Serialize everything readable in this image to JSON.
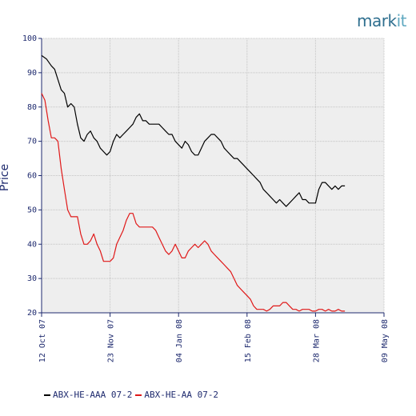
{
  "brand": {
    "logo_main": "mark",
    "logo_accent": "it"
  },
  "chart_data": {
    "type": "line",
    "ylabel": "Price",
    "xlabel": "",
    "ylim": [
      20,
      100
    ],
    "yticks": [
      20,
      30,
      40,
      50,
      60,
      70,
      80,
      90,
      100
    ],
    "xticks": [
      {
        "label": "12 Oct 07",
        "t": 0
      },
      {
        "label": "23 Nov 07",
        "t": 42
      },
      {
        "label": "04 Jan 08",
        "t": 84
      },
      {
        "label": "15 Feb 08",
        "t": 126
      },
      {
        "label": "28 Mar 08",
        "t": 168
      },
      {
        "label": "09 May 08",
        "t": 210
      }
    ],
    "xlim": [
      0,
      210
    ],
    "grid": true,
    "legend_position": "bottom",
    "background": "#eeeeee",
    "series": [
      {
        "name": "ABX-HE-AAA 07-2",
        "color": "#000000",
        "points": [
          [
            0,
            95
          ],
          [
            3,
            94
          ],
          [
            6,
            92
          ],
          [
            8,
            91
          ],
          [
            10,
            88
          ],
          [
            12,
            85
          ],
          [
            14,
            84
          ],
          [
            16,
            80
          ],
          [
            18,
            81
          ],
          [
            20,
            80
          ],
          [
            22,
            75
          ],
          [
            24,
            71
          ],
          [
            26,
            70
          ],
          [
            28,
            72
          ],
          [
            30,
            73
          ],
          [
            32,
            71
          ],
          [
            34,
            70
          ],
          [
            36,
            68
          ],
          [
            38,
            67
          ],
          [
            40,
            66
          ],
          [
            42,
            67
          ],
          [
            44,
            70
          ],
          [
            46,
            72
          ],
          [
            48,
            71
          ],
          [
            50,
            72
          ],
          [
            52,
            73
          ],
          [
            54,
            74
          ],
          [
            56,
            75
          ],
          [
            58,
            77
          ],
          [
            60,
            78
          ],
          [
            62,
            76
          ],
          [
            64,
            76
          ],
          [
            66,
            75
          ],
          [
            68,
            75
          ],
          [
            70,
            75
          ],
          [
            72,
            75
          ],
          [
            74,
            74
          ],
          [
            76,
            73
          ],
          [
            78,
            72
          ],
          [
            80,
            72
          ],
          [
            82,
            70
          ],
          [
            84,
            69
          ],
          [
            86,
            68
          ],
          [
            88,
            70
          ],
          [
            90,
            69
          ],
          [
            92,
            67
          ],
          [
            94,
            66
          ],
          [
            96,
            66
          ],
          [
            98,
            68
          ],
          [
            100,
            70
          ],
          [
            102,
            71
          ],
          [
            104,
            72
          ],
          [
            106,
            72
          ],
          [
            108,
            71
          ],
          [
            110,
            70
          ],
          [
            112,
            68
          ],
          [
            114,
            67
          ],
          [
            116,
            66
          ],
          [
            118,
            65
          ],
          [
            120,
            65
          ],
          [
            122,
            64
          ],
          [
            124,
            63
          ],
          [
            126,
            62
          ],
          [
            128,
            61
          ],
          [
            130,
            60
          ],
          [
            132,
            59
          ],
          [
            134,
            58
          ],
          [
            136,
            56
          ],
          [
            138,
            55
          ],
          [
            140,
            54
          ],
          [
            142,
            53
          ],
          [
            144,
            52
          ],
          [
            146,
            53
          ],
          [
            148,
            52
          ],
          [
            150,
            51
          ],
          [
            152,
            52
          ],
          [
            154,
            53
          ],
          [
            156,
            54
          ],
          [
            158,
            55
          ],
          [
            160,
            53
          ],
          [
            162,
            53
          ],
          [
            164,
            52
          ],
          [
            166,
            52
          ],
          [
            168,
            52
          ],
          [
            170,
            56
          ],
          [
            172,
            58
          ],
          [
            174,
            58
          ],
          [
            176,
            57
          ],
          [
            178,
            56
          ],
          [
            180,
            57
          ],
          [
            182,
            56
          ],
          [
            184,
            57
          ],
          [
            186,
            57
          ]
        ]
      },
      {
        "name": "ABX-HE-AA 07-2",
        "color": "#e01818",
        "points": [
          [
            0,
            84
          ],
          [
            2,
            82
          ],
          [
            4,
            76
          ],
          [
            6,
            71
          ],
          [
            8,
            71
          ],
          [
            10,
            70
          ],
          [
            12,
            62
          ],
          [
            14,
            56
          ],
          [
            16,
            50
          ],
          [
            18,
            48
          ],
          [
            20,
            48
          ],
          [
            22,
            48
          ],
          [
            24,
            43
          ],
          [
            26,
            40
          ],
          [
            28,
            40
          ],
          [
            30,
            41
          ],
          [
            32,
            43
          ],
          [
            34,
            40
          ],
          [
            36,
            38
          ],
          [
            38,
            35
          ],
          [
            40,
            35
          ],
          [
            42,
            35
          ],
          [
            44,
            36
          ],
          [
            46,
            40
          ],
          [
            48,
            42
          ],
          [
            50,
            44
          ],
          [
            52,
            47
          ],
          [
            54,
            49
          ],
          [
            56,
            49
          ],
          [
            58,
            46
          ],
          [
            60,
            45
          ],
          [
            62,
            45
          ],
          [
            64,
            45
          ],
          [
            66,
            45
          ],
          [
            68,
            45
          ],
          [
            70,
            44
          ],
          [
            72,
            42
          ],
          [
            74,
            40
          ],
          [
            76,
            38
          ],
          [
            78,
            37
          ],
          [
            80,
            38
          ],
          [
            82,
            40
          ],
          [
            84,
            38
          ],
          [
            86,
            36
          ],
          [
            88,
            36
          ],
          [
            90,
            38
          ],
          [
            92,
            39
          ],
          [
            94,
            40
          ],
          [
            96,
            39
          ],
          [
            98,
            40
          ],
          [
            100,
            41
          ],
          [
            102,
            40
          ],
          [
            104,
            38
          ],
          [
            106,
            37
          ],
          [
            108,
            36
          ],
          [
            110,
            35
          ],
          [
            112,
            34
          ],
          [
            114,
            33
          ],
          [
            116,
            32
          ],
          [
            118,
            30
          ],
          [
            120,
            28
          ],
          [
            122,
            27
          ],
          [
            124,
            26
          ],
          [
            126,
            25
          ],
          [
            128,
            24
          ],
          [
            130,
            22
          ],
          [
            132,
            21
          ],
          [
            134,
            21
          ],
          [
            136,
            21
          ],
          [
            138,
            20.5
          ],
          [
            140,
            21
          ],
          [
            142,
            22
          ],
          [
            144,
            22
          ],
          [
            146,
            22
          ],
          [
            148,
            23
          ],
          [
            150,
            23
          ],
          [
            152,
            22
          ],
          [
            154,
            21
          ],
          [
            156,
            21
          ],
          [
            158,
            20.5
          ],
          [
            160,
            21
          ],
          [
            162,
            21
          ],
          [
            164,
            21
          ],
          [
            166,
            20.5
          ],
          [
            168,
            20.5
          ],
          [
            170,
            21
          ],
          [
            172,
            21
          ],
          [
            174,
            20.5
          ],
          [
            176,
            21
          ],
          [
            178,
            20.5
          ],
          [
            180,
            20.5
          ],
          [
            182,
            21
          ],
          [
            184,
            20.5
          ],
          [
            186,
            20.5
          ]
        ]
      }
    ]
  }
}
